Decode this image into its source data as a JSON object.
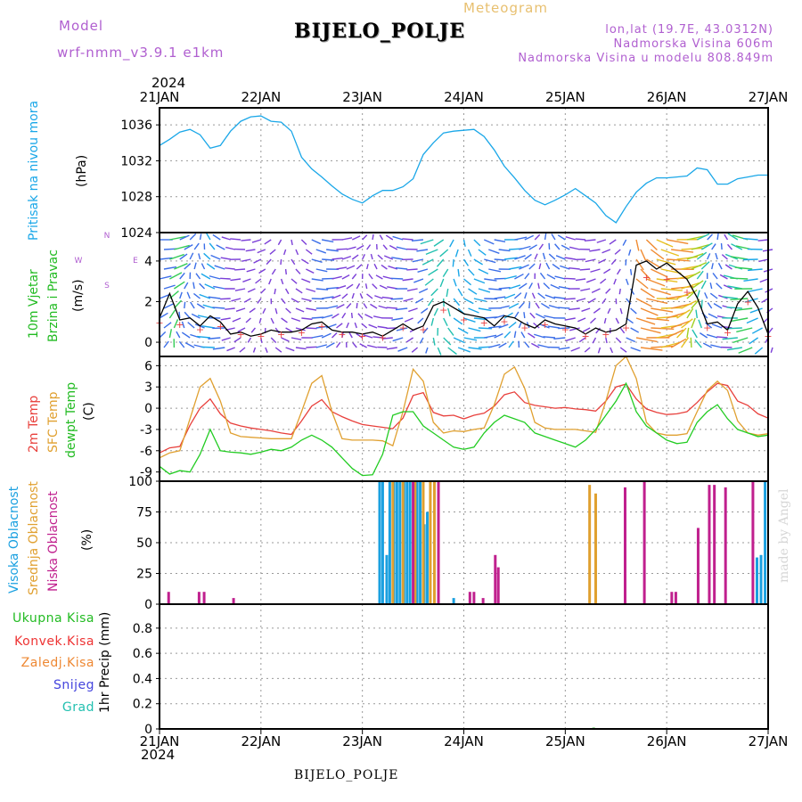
{
  "header": {
    "model_label": "Model",
    "model_name": "wrf-nmm_v3.9.1  e1km",
    "station": "BIJELO_POLJE",
    "chart_kind": "Meteogram",
    "coords": "lon,lat (19.7E, 43.0312N)",
    "elevation": "Nadmorska Visina 606m",
    "model_elevation": "Nadmorska Visina u modelu 808.849m"
  },
  "footer": {
    "station": "BIJELO_POLJE",
    "credit": "made by Angel"
  },
  "colors": {
    "pressure": "#1aa7e8",
    "temp2m": "#e8403c",
    "sfc": "#e0a030",
    "dew": "#22cc22",
    "high_cloud": "#1aa0e0",
    "mid_cloud": "#e0a030",
    "low_cloud": "#c0208e",
    "title_purple": "#b05fd0"
  },
  "chart_data": {
    "time_axis": {
      "year": "2024",
      "labels": [
        "21JAN",
        "22JAN",
        "23JAN",
        "24JAN",
        "25JAN",
        "26JAN",
        "27JAN"
      ],
      "start_day": 21,
      "end_day": 27
    },
    "panels": [
      {
        "id": "pressure",
        "type": "line",
        "ylabel": [
          "Pritisak na nivou mora",
          "(hPa)"
        ],
        "yticks": [
          1024,
          1028,
          1032,
          1036
        ],
        "ylim": [
          1024,
          1037.9
        ],
        "grid": true,
        "series": [
          {
            "color_key": "pressure",
            "x": [
              21.0,
              21.1,
              21.2,
              21.3,
              21.4,
              21.5,
              21.6,
              21.7,
              21.8,
              21.9,
              22.0,
              22.1,
              22.2,
              22.3,
              22.4,
              22.5,
              22.6,
              22.7,
              22.8,
              22.9,
              23.0,
              23.1,
              23.2,
              23.3,
              23.4,
              23.5,
              23.6,
              23.7,
              23.8,
              23.9,
              24.0,
              24.1,
              24.2,
              24.3,
              24.4,
              24.5,
              24.6,
              24.7,
              24.8,
              24.9,
              25.0,
              25.1,
              25.2,
              25.3,
              25.4,
              25.5,
              25.6,
              25.7,
              25.8,
              25.9,
              26.0,
              26.1,
              26.2,
              26.3,
              26.4,
              26.5,
              26.6,
              26.7,
              26.8,
              26.9,
              27.0
            ],
            "y": [
              1033.7,
              1034.4,
              1035.2,
              1035.5,
              1034.9,
              1033.4,
              1033.7,
              1035.3,
              1036.4,
              1036.9,
              1037.0,
              1036.4,
              1036.3,
              1035.3,
              1032.4,
              1031.1,
              1030.2,
              1029.2,
              1028.3,
              1027.7,
              1027.3,
              1028.1,
              1028.7,
              1028.7,
              1029.1,
              1030.0,
              1032.7,
              1034.0,
              1035.1,
              1035.3,
              1035.4,
              1035.5,
              1034.7,
              1033.2,
              1031.4,
              1030.1,
              1028.7,
              1027.6,
              1027.1,
              1027.6,
              1028.2,
              1028.9,
              1028.1,
              1027.3,
              1025.9,
              1025.1,
              1026.9,
              1028.5,
              1029.5,
              1030.1,
              1030.1,
              1030.2,
              1030.3,
              1031.2,
              1031.0,
              1029.4,
              1029.4,
              1030.0,
              1030.2,
              1030.4,
              1030.4
            ]
          }
        ]
      },
      {
        "id": "wind",
        "type": "line",
        "ylabel": [
          "10m Vjetar",
          "Brzina i Pravac",
          "(m/s)"
        ],
        "compass": [
          "N",
          "W",
          "E",
          "S"
        ],
        "yticks": [
          0,
          2,
          4
        ],
        "ylim": [
          -0.7,
          5.4
        ],
        "grid": true,
        "series": [
          {
            "color": "#000000",
            "x": [
              21.0,
              21.1,
              21.2,
              21.3,
              21.4,
              21.5,
              21.6,
              21.7,
              21.8,
              21.9,
              22.0,
              22.1,
              22.2,
              22.3,
              22.4,
              22.5,
              22.6,
              22.7,
              22.8,
              22.9,
              23.0,
              23.1,
              23.2,
              23.3,
              23.4,
              23.5,
              23.6,
              23.7,
              23.8,
              23.9,
              24.0,
              24.1,
              24.2,
              24.3,
              24.4,
              24.5,
              24.6,
              24.7,
              24.8,
              24.9,
              25.0,
              25.1,
              25.2,
              25.3,
              25.4,
              25.5,
              25.6,
              25.7,
              25.8,
              25.9,
              26.0,
              26.1,
              26.2,
              26.3,
              26.4,
              26.5,
              26.6,
              26.7,
              26.8,
              26.9,
              27.0
            ],
            "y": [
              1.2,
              2.4,
              1.1,
              1.2,
              0.8,
              1.3,
              1.0,
              0.4,
              0.5,
              0.3,
              0.4,
              0.6,
              0.5,
              0.5,
              0.6,
              0.9,
              1.0,
              0.6,
              0.5,
              0.5,
              0.4,
              0.5,
              0.3,
              0.6,
              0.9,
              0.6,
              0.8,
              1.8,
              2.0,
              1.7,
              1.4,
              1.3,
              1.2,
              0.8,
              1.3,
              1.2,
              0.9,
              0.7,
              1.1,
              0.9,
              0.8,
              0.7,
              0.4,
              0.7,
              0.5,
              0.6,
              0.9,
              3.8,
              4.0,
              3.6,
              3.9,
              3.5,
              3.1,
              2.2,
              0.9,
              1.0,
              0.6,
              1.9,
              2.5,
              1.7,
              0.4
            ]
          }
        ]
      },
      {
        "id": "temperature",
        "type": "line",
        "ylabel": [
          "2m Temp",
          "SFC Temp",
          "dewpt Temp",
          "(C)"
        ],
        "yticks": [
          -9,
          -6,
          -3,
          0,
          3,
          6
        ],
        "ylim": [
          -10.3,
          7.3
        ],
        "grid": true,
        "series": [
          {
            "name": "2m Temp",
            "color_key": "temp2m",
            "x": [
              21.0,
              21.1,
              21.2,
              21.3,
              21.4,
              21.5,
              21.6,
              21.7,
              21.8,
              21.9,
              22.0,
              22.1,
              22.2,
              22.3,
              22.4,
              22.5,
              22.6,
              22.7,
              22.8,
              22.9,
              23.0,
              23.1,
              23.2,
              23.3,
              23.4,
              23.5,
              23.6,
              23.7,
              23.8,
              23.9,
              24.0,
              24.1,
              24.2,
              24.3,
              24.4,
              24.5,
              24.6,
              24.7,
              24.8,
              24.9,
              25.0,
              25.1,
              25.2,
              25.3,
              25.4,
              25.5,
              25.6,
              25.7,
              25.8,
              25.9,
              26.0,
              26.1,
              26.2,
              26.3,
              26.4,
              26.5,
              26.6,
              26.7,
              26.8,
              26.9,
              27.0
            ],
            "y": [
              -6.3,
              -5.6,
              -5.4,
              -2.4,
              0.0,
              1.3,
              -0.8,
              -2.1,
              -2.5,
              -2.8,
              -3.0,
              -3.2,
              -3.5,
              -3.7,
              -1.8,
              0.3,
              1.2,
              -0.5,
              -1.2,
              -1.8,
              -2.3,
              -2.5,
              -2.7,
              -2.9,
              -1.4,
              1.8,
              2.2,
              -0.6,
              -1.1,
              -1.0,
              -1.5,
              -1.0,
              -0.7,
              0.3,
              1.9,
              2.3,
              0.8,
              0.4,
              0.2,
              0.0,
              0.1,
              -0.1,
              -0.2,
              -0.4,
              1.0,
              3.0,
              3.4,
              1.3,
              -0.1,
              -0.6,
              -0.9,
              -0.8,
              -0.5,
              0.8,
              2.3,
              3.5,
              3.2,
              1.0,
              0.4,
              -0.8,
              -1.4
            ]
          },
          {
            "name": "SFC Temp",
            "color_key": "sfc",
            "x": [
              21.0,
              21.1,
              21.2,
              21.3,
              21.4,
              21.5,
              21.6,
              21.7,
              21.8,
              21.9,
              22.0,
              22.1,
              22.2,
              22.3,
              22.4,
              22.5,
              22.6,
              22.7,
              22.8,
              22.9,
              23.0,
              23.1,
              23.2,
              23.3,
              23.4,
              23.5,
              23.6,
              23.7,
              23.8,
              23.9,
              24.0,
              24.1,
              24.2,
              24.3,
              24.4,
              24.5,
              24.6,
              24.7,
              24.8,
              24.9,
              25.0,
              25.1,
              25.2,
              25.3,
              25.4,
              25.5,
              25.6,
              25.7,
              25.8,
              25.9,
              26.0,
              26.1,
              26.2,
              26.3,
              26.4,
              26.5,
              26.6,
              26.7,
              26.8,
              26.9,
              27.0
            ],
            "y": [
              -7.0,
              -6.3,
              -6.0,
              -1.5,
              3.0,
              4.2,
              1.0,
              -3.5,
              -4.0,
              -4.1,
              -4.2,
              -4.3,
              -4.3,
              -4.3,
              -0.5,
              3.5,
              4.6,
              -0.5,
              -4.3,
              -4.5,
              -4.5,
              -4.5,
              -4.6,
              -5.3,
              -0.5,
              5.5,
              3.8,
              -2.0,
              -3.5,
              -3.2,
              -3.3,
              -3.0,
              -2.8,
              0.5,
              4.8,
              5.8,
              2.8,
              -2.0,
              -2.8,
              -3.0,
              -3.0,
              -3.0,
              -3.2,
              -3.4,
              1.0,
              6.0,
              7.3,
              4.2,
              -2.0,
              -3.5,
              -3.8,
              -3.8,
              -3.6,
              -0.5,
              2.5,
              3.8,
              2.5,
              -1.8,
              -3.5,
              -3.8,
              -3.6
            ]
          },
          {
            "name": "dewpt Temp",
            "color_key": "dew",
            "x": [
              21.0,
              21.1,
              21.2,
              21.3,
              21.4,
              21.5,
              21.6,
              21.7,
              21.8,
              21.9,
              22.0,
              22.1,
              22.2,
              22.3,
              22.4,
              22.5,
              22.6,
              22.7,
              22.8,
              22.9,
              23.0,
              23.1,
              23.2,
              23.3,
              23.4,
              23.5,
              23.6,
              23.7,
              23.8,
              23.9,
              24.0,
              24.1,
              24.2,
              24.3,
              24.4,
              24.5,
              24.6,
              24.7,
              24.8,
              24.9,
              25.0,
              25.1,
              25.2,
              25.3,
              25.4,
              25.5,
              25.6,
              25.7,
              25.8,
              25.9,
              26.0,
              26.1,
              26.2,
              26.3,
              26.4,
              26.5,
              26.6,
              26.7,
              26.8,
              26.9,
              27.0
            ],
            "y": [
              -8.2,
              -9.3,
              -8.8,
              -9.0,
              -6.5,
              -3.0,
              -6.0,
              -6.2,
              -6.3,
              -6.5,
              -6.2,
              -5.8,
              -6.0,
              -5.5,
              -4.5,
              -3.8,
              -4.5,
              -5.5,
              -7.0,
              -8.5,
              -9.5,
              -9.4,
              -6.5,
              -1.0,
              -0.5,
              -0.5,
              -2.5,
              -3.5,
              -4.5,
              -5.5,
              -5.8,
              -5.5,
              -3.5,
              -2.0,
              -1.0,
              -1.5,
              -2.0,
              -3.5,
              -4.0,
              -4.5,
              -5.0,
              -5.5,
              -4.5,
              -3.0,
              -1.0,
              1.0,
              3.5,
              -0.5,
              -2.5,
              -3.5,
              -4.5,
              -5.0,
              -4.8,
              -2.0,
              -0.5,
              0.5,
              -1.5,
              -3.0,
              -3.5,
              -4.0,
              -3.8
            ]
          }
        ]
      },
      {
        "id": "cloud",
        "type": "bar",
        "ylabel": [
          "Visoka Oblacnost",
          "Srednja Oblacnost",
          "Niska Oblacnost",
          "(%)"
        ],
        "yticks": [
          0,
          25,
          50,
          75,
          100
        ],
        "ylim": [
          0,
          100
        ],
        "grid": true,
        "series": [
          {
            "name": "Visoka Oblacnost",
            "color_key": "high_cloud",
            "x": [
              23.17,
              23.2,
              23.24,
              23.27,
              23.31,
              23.34,
              23.37,
              23.41,
              23.44,
              23.47,
              23.51,
              23.54,
              23.57,
              23.61,
              23.64,
              23.9,
              26.89,
              26.93,
              26.97
            ],
            "values": [
              100,
              100,
              40,
              100,
              100,
              100,
              100,
              100,
              100,
              100,
              100,
              100,
              100,
              65,
              75,
              5,
              38,
              40,
              100
            ]
          },
          {
            "name": "Srednja Oblacnost",
            "color_key": "mid_cloud",
            "x": [
              23.3,
              23.4,
              23.52,
              23.6,
              23.67,
              23.71,
              25.24,
              25.3
            ],
            "values": [
              100,
              100,
              100,
              100,
              100,
              100,
              97,
              90
            ]
          },
          {
            "name": "Niska Oblacnost",
            "color_key": "low_cloud",
            "x": [
              21.09,
              21.39,
              21.44,
              21.73,
              23.5,
              23.75,
              24.06,
              24.1,
              24.19,
              24.31,
              24.34,
              25.59,
              25.78,
              26.05,
              26.09,
              26.31,
              26.42,
              26.47,
              26.58,
              26.85
            ],
            "values": [
              10,
              10,
              10,
              5,
              100,
              100,
              10,
              10,
              5,
              40,
              30,
              95,
              100,
              10,
              10,
              62,
              97,
              97,
              95,
              100
            ]
          }
        ]
      },
      {
        "id": "precip",
        "type": "bar",
        "ylabel": [
          "1hr Precip (mm)"
        ],
        "legend": [
          "Ukupna  Kisa",
          "Konvek.Kisa",
          "Zaledj.Kisa",
          "Snijeg",
          "Grad"
        ],
        "yticks": [
          0,
          0.2,
          0.4,
          0.6,
          0.8
        ],
        "ylim": [
          0,
          0.99
        ],
        "grid": true,
        "series": [
          {
            "name": "Ukupna  Kisa",
            "color": "#22bb22",
            "x": [
              25.28
            ],
            "values": [
              0.01
            ]
          },
          {
            "name": "Konvek.Kisa",
            "color": "#ee3333",
            "x": [],
            "values": []
          },
          {
            "name": "Zaledj.Kisa",
            "color": "#ee8833",
            "x": [],
            "values": []
          },
          {
            "name": "Snijeg",
            "color": "#4444dd",
            "x": [],
            "values": []
          },
          {
            "name": "Grad",
            "color": "#22c0b0",
            "x": [],
            "values": []
          }
        ]
      }
    ]
  }
}
